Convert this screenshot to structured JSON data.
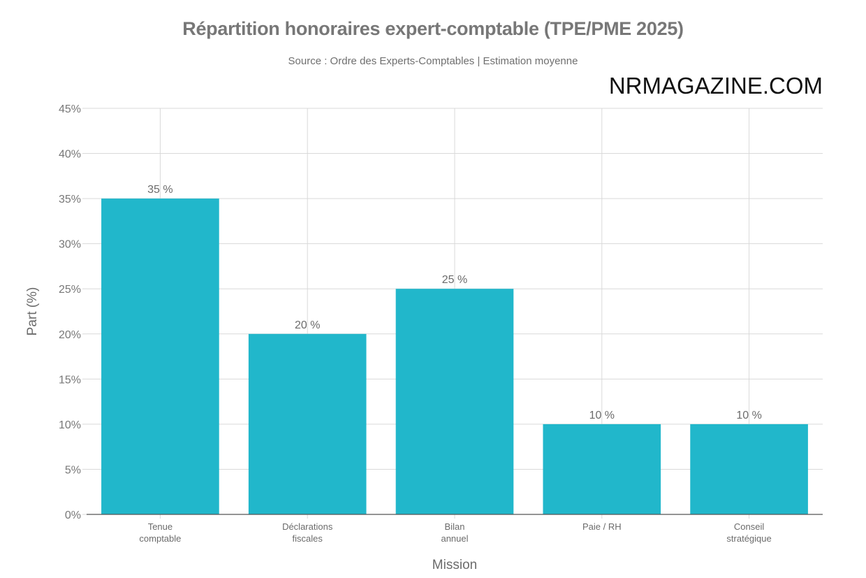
{
  "header": {
    "title": "Répartition honoraires expert-comptable (TPE/PME 2025)",
    "subtitle": "Source : Ordre des Experts-Comptables | Estimation moyenne",
    "watermark": "NRMAGAZINE.COM"
  },
  "colors": {
    "bar": "#21b7cb",
    "grid": "#d9d9d9",
    "axis": "#555555"
  },
  "chart_data": {
    "type": "bar",
    "title": "Répartition honoraires expert-comptable (TPE/PME 2025)",
    "subtitle": "Source : Ordre des Experts-Comptables | Estimation moyenne",
    "xlabel": "Mission",
    "ylabel": "Part (%)",
    "ylim": [
      0,
      45
    ],
    "yticks": [
      0,
      5,
      10,
      15,
      20,
      25,
      30,
      35,
      40,
      45
    ],
    "ytick_labels": [
      "0%",
      "5%",
      "10%",
      "15%",
      "20%",
      "25%",
      "30%",
      "35%",
      "40%",
      "45%"
    ],
    "categories": [
      [
        "Tenue",
        "comptable"
      ],
      [
        "Déclarations",
        "fiscales"
      ],
      [
        "Bilan",
        "annuel"
      ],
      [
        "Paie / RH"
      ],
      [
        "Conseil",
        "stratégique"
      ]
    ],
    "values": [
      35,
      20,
      25,
      10,
      10
    ],
    "data_labels": [
      "35 %",
      "20 %",
      "25 %",
      "10 %",
      "10 %"
    ],
    "grid": true
  }
}
